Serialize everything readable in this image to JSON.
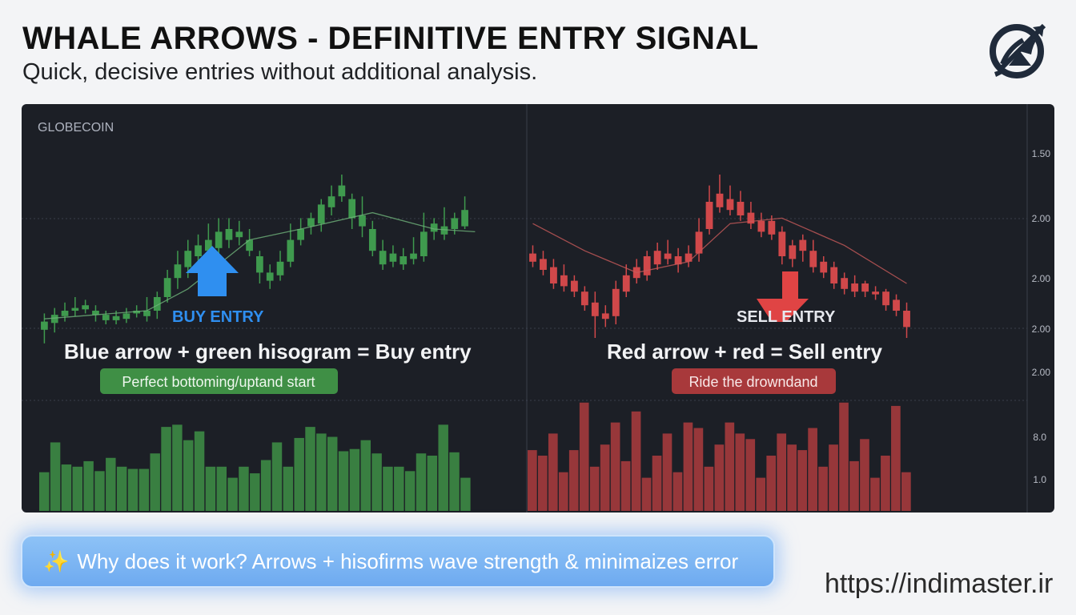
{
  "header": {
    "title": "WHALE ARROWS - DEFINITIVE ENTRY SIGNAL",
    "subtitle": "Quick, decisive entries without additional analysis."
  },
  "chart": {
    "symbol": "GLOBECOIN",
    "buy_label": "BUY ENTRY",
    "sell_label": "SELL ENTRY",
    "buy_caption": "Blue arrow + green hisogram = Buy entry",
    "sell_caption": "Red arrow + red = Sell entry",
    "buy_badge": "Perfect bottoming/uptand start",
    "sell_badge": "Ride the drowndand"
  },
  "footer": {
    "sparkle_icon": "✨",
    "banner_text": "Why does it work? Arrows + hisofirms wave strength & minimaizes error",
    "url": "https://indimaster.ir"
  },
  "colors": {
    "bull": "#3f9a4e",
    "bear": "#d0484a",
    "buy_arrow": "#2f8ff0",
    "sell_arrow": "#e04444",
    "panel_bg": "#1c1f26"
  },
  "chart_data": {
    "type": "candlestick",
    "price_axis_ticks": [
      "1.50",
      "2.00",
      "2.00",
      "2.00",
      "2.00"
    ],
    "volume_axis_ticks": [
      "8.0",
      "1.0"
    ],
    "candles_up": [
      [
        0.23,
        0.26,
        0.18,
        0.29
      ],
      [
        0.255,
        0.285,
        0.22,
        0.31
      ],
      [
        0.28,
        0.3,
        0.26,
        0.33
      ],
      [
        0.3,
        0.31,
        0.28,
        0.35
      ],
      [
        0.305,
        0.32,
        0.29,
        0.34
      ],
      [
        0.285,
        0.3,
        0.26,
        0.32
      ],
      [
        0.265,
        0.285,
        0.25,
        0.3
      ],
      [
        0.265,
        0.28,
        0.25,
        0.3
      ],
      [
        0.27,
        0.29,
        0.255,
        0.31
      ],
      [
        0.29,
        0.3,
        0.275,
        0.32
      ],
      [
        0.28,
        0.3,
        0.26,
        0.35
      ],
      [
        0.3,
        0.35,
        0.27,
        0.37
      ],
      [
        0.35,
        0.42,
        0.33,
        0.45
      ],
      [
        0.42,
        0.47,
        0.38,
        0.52
      ],
      [
        0.46,
        0.52,
        0.42,
        0.56
      ],
      [
        0.5,
        0.54,
        0.47,
        0.58
      ],
      [
        0.52,
        0.56,
        0.48,
        0.62
      ],
      [
        0.53,
        0.59,
        0.5,
        0.64
      ],
      [
        0.56,
        0.6,
        0.53,
        0.64
      ],
      [
        0.57,
        0.59,
        0.54,
        0.63
      ],
      [
        0.52,
        0.56,
        0.5,
        0.6
      ],
      [
        0.44,
        0.5,
        0.4,
        0.52
      ],
      [
        0.41,
        0.44,
        0.38,
        0.47
      ],
      [
        0.43,
        0.48,
        0.41,
        0.52
      ],
      [
        0.48,
        0.56,
        0.46,
        0.62
      ],
      [
        0.56,
        0.6,
        0.54,
        0.64
      ],
      [
        0.61,
        0.64,
        0.58,
        0.66
      ],
      [
        0.62,
        0.69,
        0.59,
        0.71
      ],
      [
        0.68,
        0.72,
        0.65,
        0.76
      ],
      [
        0.72,
        0.76,
        0.7,
        0.8
      ],
      [
        0.64,
        0.71,
        0.6,
        0.73
      ],
      [
        0.61,
        0.65,
        0.57,
        0.72
      ],
      [
        0.52,
        0.6,
        0.5,
        0.63
      ],
      [
        0.47,
        0.52,
        0.45,
        0.56
      ],
      [
        0.48,
        0.51,
        0.46,
        0.54
      ],
      [
        0.47,
        0.5,
        0.45,
        0.53
      ],
      [
        0.49,
        0.51,
        0.47,
        0.57
      ],
      [
        0.5,
        0.59,
        0.48,
        0.66
      ],
      [
        0.59,
        0.62,
        0.56,
        0.64
      ],
      [
        0.58,
        0.61,
        0.56,
        0.68
      ],
      [
        0.6,
        0.64,
        0.58,
        0.66
      ],
      [
        0.61,
        0.67,
        0.6,
        0.72
      ]
    ],
    "candles_down": [
      [
        0.51,
        0.48,
        0.46,
        0.54
      ],
      [
        0.49,
        0.45,
        0.43,
        0.52
      ],
      [
        0.46,
        0.4,
        0.38,
        0.49
      ],
      [
        0.43,
        0.39,
        0.37,
        0.47
      ],
      [
        0.41,
        0.37,
        0.35,
        0.43
      ],
      [
        0.37,
        0.32,
        0.3,
        0.39
      ],
      [
        0.33,
        0.28,
        0.2,
        0.37
      ],
      [
        0.29,
        0.27,
        0.24,
        0.32
      ],
      [
        0.38,
        0.28,
        0.25,
        0.41
      ],
      [
        0.43,
        0.37,
        0.35,
        0.47
      ],
      [
        0.46,
        0.42,
        0.4,
        0.49
      ],
      [
        0.5,
        0.43,
        0.41,
        0.52
      ],
      [
        0.52,
        0.47,
        0.45,
        0.55
      ],
      [
        0.51,
        0.49,
        0.47,
        0.56
      ],
      [
        0.5,
        0.47,
        0.44,
        0.53
      ],
      [
        0.51,
        0.48,
        0.46,
        0.54
      ],
      [
        0.59,
        0.51,
        0.48,
        0.64
      ],
      [
        0.7,
        0.6,
        0.58,
        0.76
      ],
      [
        0.73,
        0.68,
        0.66,
        0.8
      ],
      [
        0.71,
        0.67,
        0.65,
        0.76
      ],
      [
        0.7,
        0.65,
        0.63,
        0.74
      ],
      [
        0.66,
        0.62,
        0.6,
        0.7
      ],
      [
        0.63,
        0.59,
        0.57,
        0.66
      ],
      [
        0.63,
        0.58,
        0.56,
        0.65
      ],
      [
        0.59,
        0.5,
        0.47,
        0.61
      ],
      [
        0.54,
        0.49,
        0.46,
        0.56
      ],
      [
        0.56,
        0.52,
        0.48,
        0.58
      ],
      [
        0.52,
        0.46,
        0.44,
        0.56
      ],
      [
        0.48,
        0.44,
        0.42,
        0.5
      ],
      [
        0.46,
        0.4,
        0.38,
        0.48
      ],
      [
        0.42,
        0.38,
        0.36,
        0.44
      ],
      [
        0.4,
        0.37,
        0.35,
        0.43
      ],
      [
        0.4,
        0.37,
        0.35,
        0.41
      ],
      [
        0.37,
        0.36,
        0.34,
        0.39
      ],
      [
        0.37,
        0.32,
        0.3,
        0.38
      ],
      [
        0.34,
        0.3,
        0.28,
        0.36
      ],
      [
        0.3,
        0.24,
        0.2,
        0.33
      ]
    ],
    "ma_up": [
      [
        0,
        0.27
      ],
      [
        10,
        0.3
      ],
      [
        14,
        0.38
      ],
      [
        20,
        0.56
      ],
      [
        25,
        0.6
      ],
      [
        32,
        0.66
      ],
      [
        38,
        0.6
      ],
      [
        42,
        0.59
      ]
    ],
    "ma_down": [
      [
        0,
        0.62
      ],
      [
        5,
        0.52
      ],
      [
        10,
        0.44
      ],
      [
        15,
        0.48
      ],
      [
        19,
        0.62
      ],
      [
        24,
        0.64
      ],
      [
        30,
        0.54
      ],
      [
        36,
        0.4
      ]
    ],
    "volume_up": [
      0.35,
      0.62,
      0.42,
      0.4,
      0.45,
      0.36,
      0.48,
      0.4,
      0.38,
      0.38,
      0.52,
      0.76,
      0.78,
      0.64,
      0.72,
      0.4,
      0.4,
      0.3,
      0.4,
      0.34,
      0.46,
      0.62,
      0.4,
      0.66,
      0.76,
      0.7,
      0.67,
      0.54,
      0.56,
      0.64,
      0.52,
      0.4,
      0.4,
      0.36,
      0.52,
      0.5,
      0.78,
      0.53,
      0.3
    ]
  }
}
